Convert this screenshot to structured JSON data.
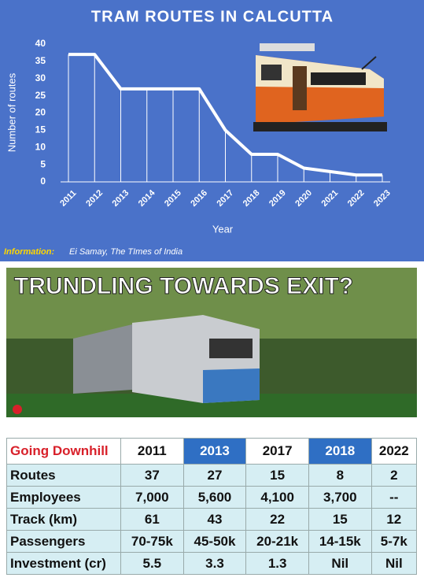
{
  "chart_data": {
    "type": "line",
    "title": "TRAM ROUTES IN CALCUTTA",
    "y_label": "Number of routes",
    "x_label": "Year",
    "categories": [
      "2011",
      "2012",
      "2013",
      "2014",
      "2015",
      "2016",
      "2017",
      "2018",
      "2019",
      "2020",
      "2021",
      "2022",
      "2023"
    ],
    "values": [
      37,
      37,
      27,
      27,
      27,
      27,
      15,
      8,
      8,
      4,
      3,
      2,
      2
    ],
    "color": "#ffffff",
    "drop_lines": true,
    "ylim": [
      0,
      40
    ],
    "yticks": [
      0,
      5,
      10,
      15,
      20,
      25,
      30,
      35,
      40
    ]
  },
  "source": {
    "label": "Information:",
    "text": "Ei Samay, The TImes of India"
  },
  "headline": "TRUNDLING TOWARDS EXIT?",
  "table": {
    "header": [
      "Going Downhill",
      "2011",
      "2013",
      "2017",
      "2018",
      "2022"
    ],
    "rows": [
      [
        "Routes",
        "37",
        "27",
        "15",
        "8",
        "2"
      ],
      [
        "Employees",
        "7,000",
        "5,600",
        "4,100",
        "3,700",
        "--"
      ],
      [
        "Track (km)",
        "61",
        "43",
        "22",
        "15",
        "12"
      ],
      [
        "Passengers",
        "70-75k",
        "45-50k",
        "20-21k",
        "14-15k",
        "5-7k"
      ],
      [
        "Investment (cr)",
        "5.5",
        "3.3",
        "1.3",
        "Nil",
        "Nil"
      ]
    ]
  }
}
